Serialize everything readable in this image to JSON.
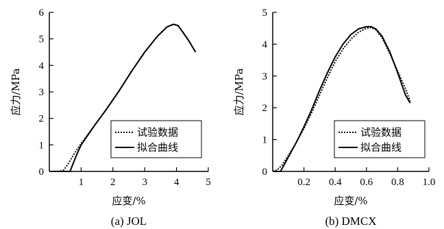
{
  "chart_data": [
    {
      "type": "line",
      "caption": "(a)  JOL",
      "xlabel": "应变/%",
      "ylabel": "应力/MPa",
      "xlim": [
        0,
        5
      ],
      "ylim": [
        0,
        6
      ],
      "xticks": [
        "1",
        "2",
        "3",
        "4",
        "5"
      ],
      "yticks": [
        "0",
        "1",
        "2",
        "3",
        "4",
        "5",
        "6"
      ],
      "legend_position": "bottom-right",
      "series": [
        {
          "name": "试验数据",
          "style": "dotted",
          "x": [
            0,
            0.3,
            0.45,
            0.6,
            0.8,
            1.0,
            1.4,
            1.8,
            2.2,
            2.6,
            3.0,
            3.4,
            3.7,
            3.9,
            4.05,
            4.2,
            4.4,
            4.6
          ],
          "y": [
            0,
            0,
            0.05,
            0.3,
            0.7,
            1.05,
            1.7,
            2.35,
            3.05,
            3.8,
            4.5,
            5.1,
            5.45,
            5.55,
            5.5,
            5.25,
            4.9,
            4.5
          ]
        },
        {
          "name": "拟合曲线",
          "style": "solid",
          "x": [
            0,
            0.65,
            0.75,
            0.85,
            1.0,
            1.4,
            1.8,
            2.2,
            2.6,
            3.0,
            3.4,
            3.7,
            3.9,
            4.05,
            4.2,
            4.4,
            4.6
          ],
          "y": [
            0,
            0,
            0.3,
            0.6,
            1.0,
            1.7,
            2.35,
            3.05,
            3.8,
            4.5,
            5.1,
            5.45,
            5.55,
            5.5,
            5.25,
            4.9,
            4.5
          ]
        }
      ]
    },
    {
      "type": "line",
      "caption": "(b)  DMCX",
      "xlabel": "应变/%",
      "ylabel": "应力/MPa",
      "xlim": [
        0,
        1.0
      ],
      "ylim": [
        0,
        5
      ],
      "xticks": [
        "0.2",
        "0.4",
        "0.6",
        "0.8",
        "1.0"
      ],
      "yticks": [
        "0",
        "1",
        "2",
        "3",
        "4",
        "5"
      ],
      "legend_position": "bottom-right",
      "series": [
        {
          "name": "试验数据",
          "style": "dotted",
          "x": [
            0,
            0.03,
            0.06,
            0.1,
            0.15,
            0.2,
            0.25,
            0.3,
            0.35,
            0.4,
            0.45,
            0.5,
            0.55,
            0.6,
            0.63,
            0.66,
            0.7,
            0.75,
            0.8,
            0.85,
            0.88
          ],
          "y": [
            0,
            0.05,
            0.2,
            0.5,
            0.9,
            1.35,
            1.85,
            2.4,
            2.95,
            3.45,
            3.85,
            4.15,
            4.38,
            4.5,
            4.52,
            4.45,
            4.2,
            3.7,
            3.15,
            2.6,
            2.2
          ]
        },
        {
          "name": "拟合曲线",
          "style": "solid",
          "x": [
            0,
            0.05,
            0.1,
            0.15,
            0.2,
            0.25,
            0.3,
            0.35,
            0.4,
            0.45,
            0.5,
            0.55,
            0.6,
            0.63,
            0.66,
            0.7,
            0.75,
            0.8,
            0.85,
            0.88
          ],
          "y": [
            0,
            0,
            0.45,
            0.9,
            1.4,
            1.95,
            2.55,
            3.1,
            3.6,
            4.0,
            4.3,
            4.48,
            4.55,
            4.55,
            4.48,
            4.25,
            3.75,
            3.1,
            2.4,
            2.15
          ]
        }
      ]
    }
  ]
}
